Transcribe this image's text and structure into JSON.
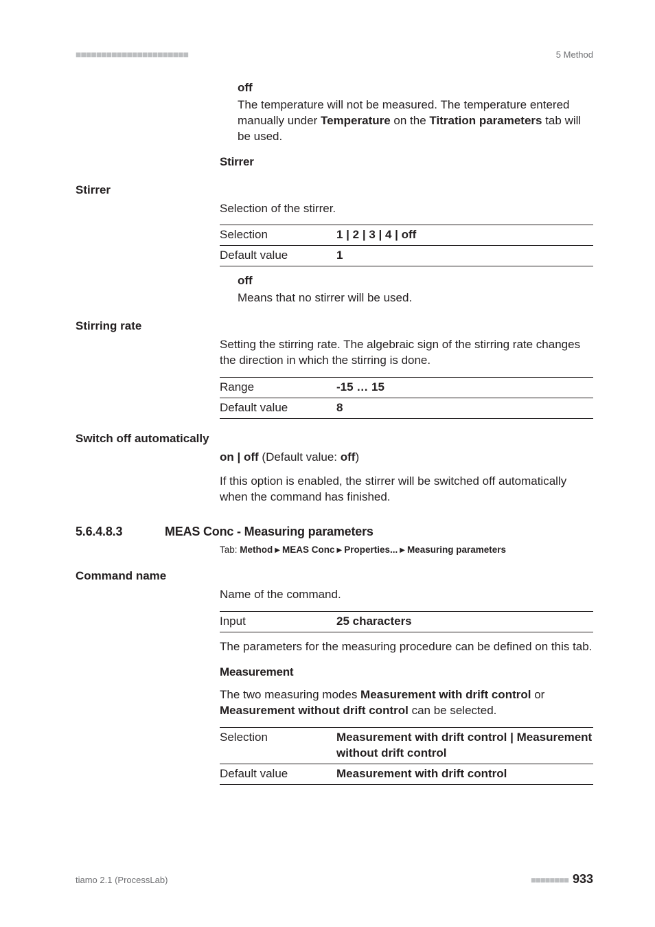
{
  "header": {
    "section_label": "5 Method"
  },
  "off_block": {
    "term": "off",
    "desc_pre": "The temperature will not be measured. The temperature entered manually under ",
    "desc_bold1": "Temperature",
    "desc_mid": " on the ",
    "desc_bold2": "Titration parameters",
    "desc_post": " tab will be used."
  },
  "stirrer_head": "Stirrer",
  "stirrer": {
    "label": "Stirrer",
    "desc": "Selection of the stirrer.",
    "row_sel_label": "Selection",
    "row_sel_value": "1 | 2 | 3 | 4 | off",
    "row_def_label": "Default value",
    "row_def_value": "1",
    "off_term": "off",
    "off_desc": "Means that no stirrer will be used."
  },
  "stirring_rate": {
    "label": "Stirring rate",
    "desc": "Setting the stirring rate. The algebraic sign of the stirring rate changes the direction in which the stirring is done.",
    "row_range_label": "Range",
    "row_range_value": "-15 … 15",
    "row_def_label": "Default value",
    "row_def_value": "8"
  },
  "switch_off": {
    "label": "Switch off automatically",
    "line1_pre": "on | off",
    "line1_mid": " (Default value: ",
    "line1_bold": "off",
    "line1_post": ")",
    "desc": "If this option is enabled, the stirrer will be switched off automatically when the command has finished."
  },
  "h3": {
    "num": "5.6.4.8.3",
    "title": "MEAS Conc - Measuring parameters"
  },
  "tabline": {
    "prefix": "Tab: ",
    "p1": "Method",
    "p2": "MEAS Conc",
    "p3": "Properties...",
    "p4": "Measuring parameters"
  },
  "command_name": {
    "label": "Command name",
    "desc": "Name of the command.",
    "row_input_label": "Input",
    "row_input_value": "25 characters",
    "after": "The parameters for the measuring procedure can be defined on this tab."
  },
  "measurement": {
    "head": "Measurement",
    "desc_pre": "The two measuring modes ",
    "desc_b1": "Measurement with drift control",
    "desc_mid": " or ",
    "desc_b2": "Measurement without drift control",
    "desc_post": " can be selected.",
    "row_sel_label": "Selection",
    "row_sel_value": "Measurement with drift control | Measurement without drift control",
    "row_def_label": "Default value",
    "row_def_value": "Measurement with drift control"
  },
  "footer": {
    "left": "tiamo 2.1 (ProcessLab)",
    "page": "933"
  }
}
